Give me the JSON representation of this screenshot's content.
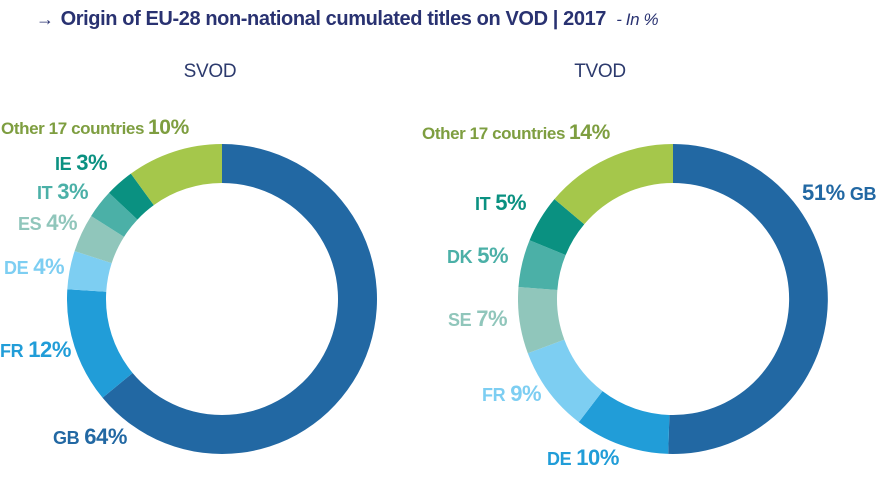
{
  "title": {
    "arrow": "→",
    "main": "Origin of EU-28 non-national cumulated titles on VOD | 2017",
    "suffix": "- In %"
  },
  "colors": {
    "title_navy": "#293271",
    "heading_navy": "#2c3a6d",
    "steel_blue": "#2268a3",
    "bright_blue": "#219dd8",
    "light_sky_blue": "#7dcef2",
    "sage_teal": "#90c6bb",
    "teal": "#4bb0a7",
    "dark_teal": "#0a9181",
    "lime_green": "#a5c74b",
    "olive_label": "#7e9e40"
  },
  "chart_data": [
    {
      "type": "pie",
      "variant": "donut",
      "title": "SVOD",
      "unit": "%",
      "slices": [
        {
          "code": "GB",
          "pct": "64%",
          "value": 64,
          "color": "#2268a3",
          "label_color": "#2268a3"
        },
        {
          "code": "FR",
          "pct": "12%",
          "value": 12,
          "color": "#219dd8",
          "label_color": "#219dd8"
        },
        {
          "code": "DE",
          "pct": "4%",
          "value": 4,
          "color": "#7dcef2",
          "label_color": "#7dcef2"
        },
        {
          "code": "ES",
          "pct": "4%",
          "value": 4,
          "color": "#90c6bb",
          "label_color": "#90c6bb"
        },
        {
          "code": "IT",
          "pct": "3%",
          "value": 3,
          "color": "#4bb0a7",
          "label_color": "#4bb0a7"
        },
        {
          "code": "IE",
          "pct": "3%",
          "value": 3,
          "color": "#0a9181",
          "label_color": "#0a9181"
        },
        {
          "code": "Other 17 countries",
          "pct": "10%",
          "value": 10,
          "color": "#a5c74b",
          "label_color": "#7e9e40"
        }
      ]
    },
    {
      "type": "pie",
      "variant": "donut",
      "title": "TVOD",
      "unit": "%",
      "slices": [
        {
          "code": "GB",
          "pct": "51%",
          "value": 51,
          "color": "#2268a3",
          "label_color": "#2268a3"
        },
        {
          "code": "DE",
          "pct": "10%",
          "value": 10,
          "color": "#219dd8",
          "label_color": "#219dd8"
        },
        {
          "code": "FR",
          "pct": "9%",
          "value": 9,
          "color": "#7dcef2",
          "label_color": "#7dcef2"
        },
        {
          "code": "SE",
          "pct": "7%",
          "value": 7,
          "color": "#90c6bb",
          "label_color": "#90c6bb"
        },
        {
          "code": "DK",
          "pct": "5%",
          "value": 5,
          "color": "#4bb0a7",
          "label_color": "#4bb0a7"
        },
        {
          "code": "IT",
          "pct": "5%",
          "value": 5,
          "color": "#0a9181",
          "label_color": "#0a9181"
        },
        {
          "code": "Other 17 countries",
          "pct": "14%",
          "value": 14,
          "color": "#a5c74b",
          "label_color": "#7e9e40"
        }
      ]
    }
  ]
}
